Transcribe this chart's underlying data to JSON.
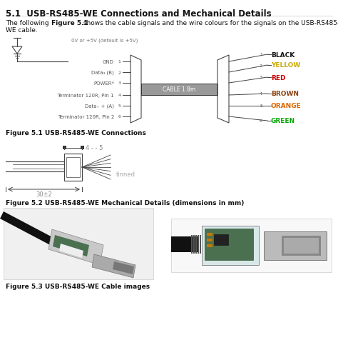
{
  "title": "5.1  USB-RS485-WE Connections and Mechanical Details",
  "voltage_label": "0V or +5V (default is +5V)",
  "left_labels": [
    "GND",
    "Data₃ (B)",
    "POWER*",
    "Terminator 120R, Pin 1",
    "Data₊ + (A)",
    "Terminator 120R, Pin 2"
  ],
  "left_pins": [
    "1",
    "2",
    "3",
    "4",
    "5",
    "6"
  ],
  "right_pins": [
    "1",
    "2",
    "3",
    "4",
    "5",
    "6"
  ],
  "right_labels": [
    "BLACK",
    "YELLOW",
    "RED",
    "BROWN",
    "ORANGE",
    "GREEN"
  ],
  "right_colors": [
    "#111111",
    "#ccaa00",
    "#cc0000",
    "#8B4010",
    "#dd6600",
    "#00aa00"
  ],
  "cable_label": "CABLE 1.8m",
  "fig1_caption": "Figure 5.1 USB-RS485-WE Connections",
  "fig2_caption": "Figure 5.2 USB-RS485-WE Mechanical Details (dimensions in mm)",
  "fig3_caption": "Figure 5.3 USB-RS485-WE Cable images",
  "mech_dim_label": "4 - - 5",
  "mech_tinned_label": "tinned",
  "mech_bottom_label": "30±2",
  "bg_color": "#ffffff",
  "text_color": "#111111",
  "gray_text": "#888888",
  "line_color": "#444444"
}
